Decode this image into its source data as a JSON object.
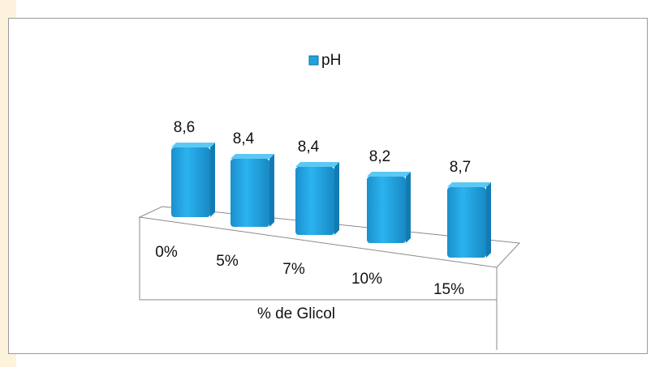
{
  "chart_data": {
    "type": "bar3d",
    "x_label": "% de Glicol",
    "categories": [
      "0%",
      "5%",
      "7%",
      "10%",
      "15%"
    ],
    "series": [
      {
        "name": "pH",
        "color": "#1fa3e0",
        "values": [
          8.6,
          8.4,
          8.4,
          8.2,
          8.7
        ],
        "value_labels": [
          "8,6",
          "8,4",
          "8,4",
          "8,2",
          "8,7"
        ]
      }
    ],
    "legend": "top"
  }
}
